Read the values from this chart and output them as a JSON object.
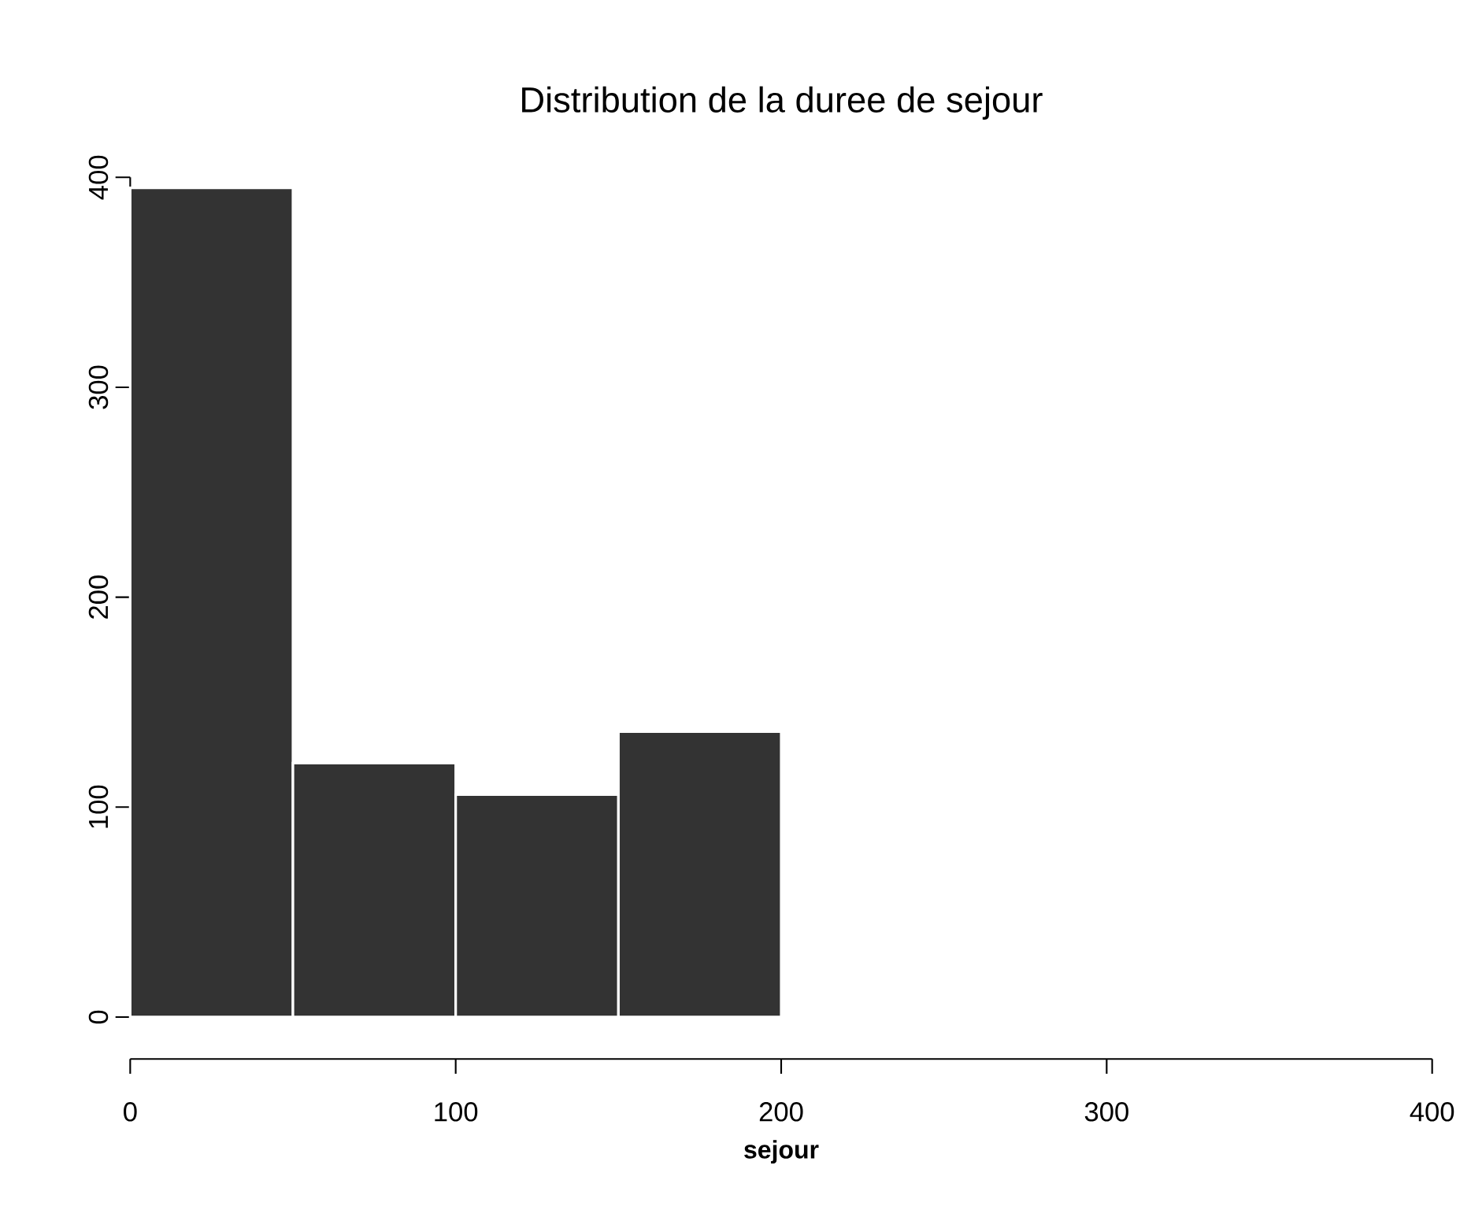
{
  "chart_data": {
    "type": "histogram",
    "title": "Distribution de la duree de sejour",
    "xlabel": "sejour",
    "bins": [
      0,
      50,
      100,
      150,
      200,
      250,
      300
    ],
    "values": [
      395,
      121,
      106,
      136,
      0,
      1
    ],
    "color": "#333333",
    "xlim": [
      0,
      400
    ],
    "xticks": [
      0,
      100,
      200,
      300,
      400
    ],
    "ylim": [
      0,
      400
    ],
    "yticks": [
      0,
      100,
      200,
      300,
      400
    ],
    "grid": false
  }
}
